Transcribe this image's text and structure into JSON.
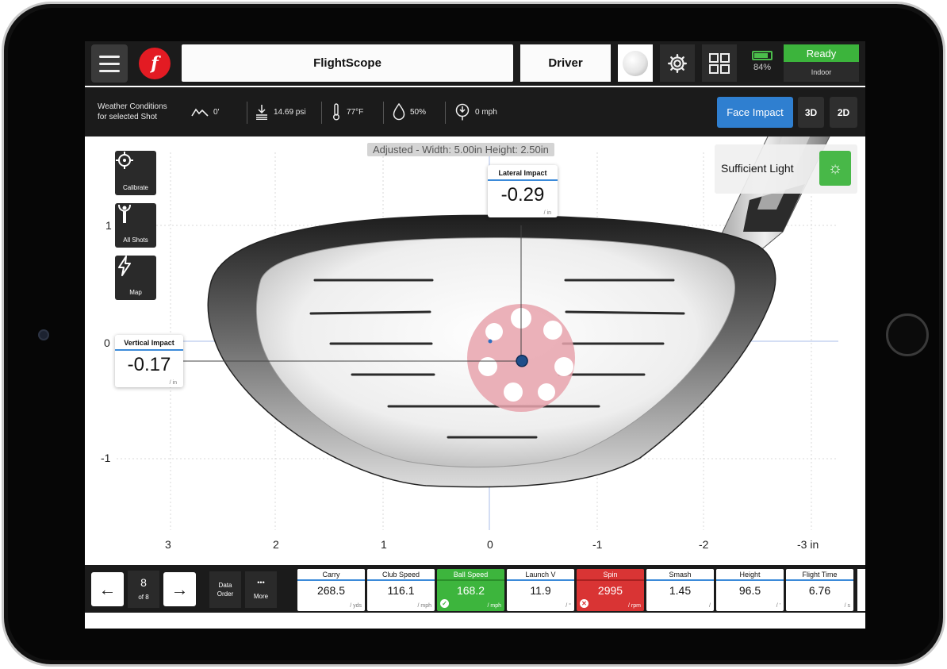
{
  "app": {
    "title": "FlightScope",
    "club": "Driver",
    "battery": "84%",
    "status": "Ready",
    "mode": "Indoor"
  },
  "weather": {
    "label_line1": "Weather Conditions",
    "label_line2": "for selected Shot",
    "altitude": "0'",
    "pressure": "14.69 psi",
    "temperature": "77°F",
    "humidity": "50%",
    "wind": "0 mph"
  },
  "views": {
    "face_impact": "Face Impact",
    "view_3d": "3D",
    "view_2d": "2D"
  },
  "chart": {
    "adjusted": "Adjusted - Width: 5.00in Height: 2.50in",
    "tools": [
      "Calibrate",
      "All Shots",
      "Map"
    ],
    "light_status": "Sufficient Light",
    "lateral": {
      "label": "Lateral Impact",
      "value": "-0.29",
      "unit": "/ in"
    },
    "vertical": {
      "label": "Vertical Impact",
      "value": "-0.17",
      "unit": "/ in"
    },
    "y_ticks": [
      "1",
      "0",
      "-1"
    ],
    "x_ticks": [
      "3",
      "2",
      "1",
      "0",
      "-1",
      "-2",
      "-3 in"
    ]
  },
  "chart_data": {
    "type": "scatter",
    "x_label": "",
    "y_label": "",
    "x_unit": "in",
    "x_range": [
      3,
      -3
    ],
    "y_range": [
      -1.4,
      1.4
    ],
    "grid": true,
    "points": [
      {
        "x": -0.29,
        "y": -0.17
      }
    ]
  },
  "shot": {
    "current": "8",
    "of": "of 8",
    "data_order": [
      "Data",
      "Order"
    ],
    "more_dots": "•••",
    "more": "More"
  },
  "metrics": [
    {
      "label": "Carry",
      "value": "268.5",
      "unit": "/ yds",
      "status": "normal"
    },
    {
      "label": "Club Speed",
      "value": "116.1",
      "unit": "/ mph",
      "status": "normal"
    },
    {
      "label": "Ball Speed",
      "value": "168.2",
      "unit": "/ mph",
      "status": "good"
    },
    {
      "label": "Launch V",
      "value": "11.9",
      "unit": "/ °",
      "status": "normal"
    },
    {
      "label": "Spin",
      "value": "2995",
      "unit": "/ rpm",
      "status": "bad"
    },
    {
      "label": "Smash",
      "value": "1.45",
      "unit": "/",
      "status": "normal"
    },
    {
      "label": "Height",
      "value": "96.5",
      "unit": "/ '",
      "status": "normal"
    },
    {
      "label": "Flight Time",
      "value": "6.76",
      "unit": "/ s",
      "status": "normal"
    }
  ],
  "colors": {
    "accent": "#2f7fd0",
    "ready": "#3cb43c",
    "good": "#3db53d",
    "bad": "#d93434",
    "brand": "#e31b23"
  }
}
